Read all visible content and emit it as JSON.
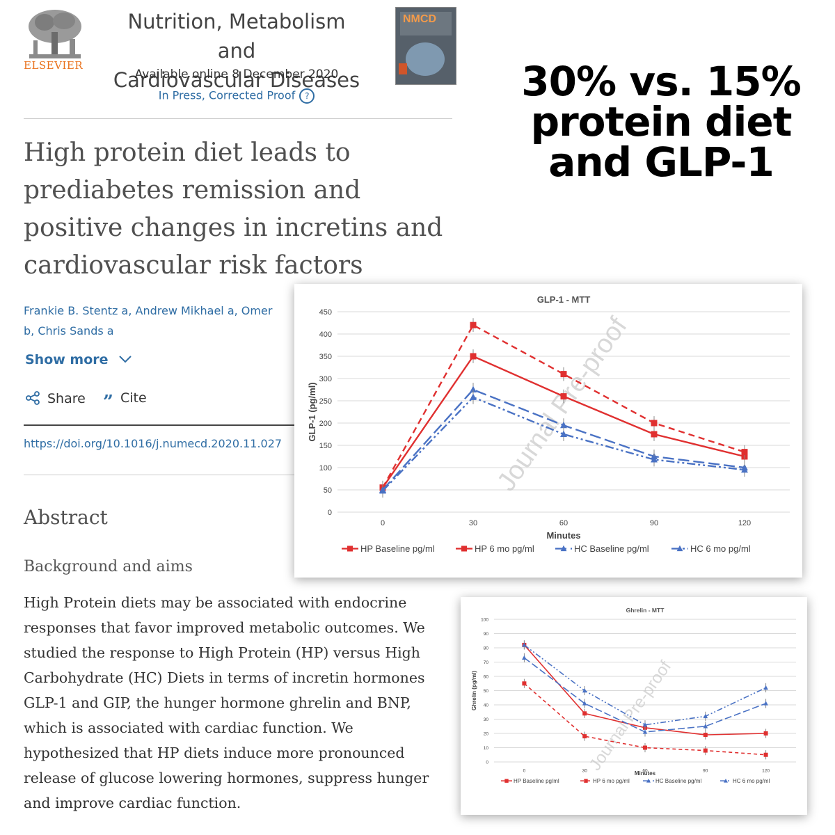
{
  "journal": {
    "publisher": "ELSEVIER",
    "name_line1": "Nutrition, Metabolism and",
    "name_line2": "Cardiovascular Diseases",
    "available": "Available online 8 December 2020",
    "status": "In Press, Corrected Proof",
    "cover_label": "NMCD"
  },
  "article": {
    "title_lines": [
      "High protein diet leads to",
      "prediabetes remission and",
      "positive changes in incretins and",
      "cardiovascular risk factors"
    ],
    "authors_line1": "Frankie B. Stentz a, Andrew Mikhael a, Omer",
    "authors_line2": "b, Chris Sands a",
    "show_more": "Show more",
    "share": "Share",
    "cite": "Cite",
    "doi": "https://doi.org/10.1016/j.numecd.2020.11.027",
    "abstract_heading": "Abstract",
    "section_heading": "Background and aims",
    "abstract_lines": [
      "High Protein diets may be associated with endocrine",
      "responses that favor improved metabolic outcomes. We",
      "studied the response to High Protein (HP) versus High",
      "Carbohydrate (HC) Diets in terms of incretin hormones",
      "GLP-1 and GIP, the hunger hormone ghrelin and BNP,",
      "which is associated with cardiac function. We",
      "hypothesized that HP diets induce more pronounced",
      "release of glucose lowering hormones, suppress hunger",
      "and improve cardiac function."
    ]
  },
  "headline": {
    "line1": "30% vs. 15%",
    "line2": "protein diet",
    "line3": "and GLP-1"
  },
  "colors": {
    "hp": "#e03030",
    "hc": "#4a72c4",
    "link": "#2f6da4",
    "elsevier": "#e9711c"
  },
  "chart_data": [
    {
      "type": "line",
      "title": "GLP-1 - MTT",
      "xlabel": "Minutes",
      "ylabel": "GLP-1 (pg/ml)",
      "x": [
        0,
        30,
        60,
        90,
        120
      ],
      "ylim": [
        0,
        450
      ],
      "yticks": [
        0,
        50,
        100,
        150,
        200,
        250,
        300,
        350,
        400,
        450
      ],
      "grid": true,
      "legend": "bottom",
      "watermark": "Journal Pre-proof",
      "series": [
        {
          "name": "HP Baseline pg/ml",
          "values": [
            55,
            350,
            260,
            175,
            125
          ],
          "color": "#e03030",
          "dash": "",
          "marker": "square"
        },
        {
          "name": "HP 6 mo pg/ml",
          "values": [
            55,
            420,
            310,
            200,
            135
          ],
          "color": "#e03030",
          "dash": "9,6",
          "marker": "square"
        },
        {
          "name": "HC Baseline pg/ml",
          "values": [
            50,
            275,
            195,
            125,
            100
          ],
          "color": "#4a72c4",
          "dash": "16,6",
          "marker": "triangle"
        },
        {
          "name": "HC 6 mo pg/ml",
          "values": [
            48,
            258,
            175,
            118,
            95
          ],
          "color": "#4a72c4",
          "dash": "12,4,3,4,3,4",
          "marker": "triangle"
        }
      ]
    },
    {
      "type": "line",
      "title": "Ghrelin - MTT",
      "xlabel": "Minutes",
      "ylabel": "Ghrelin (pg/ml)",
      "x": [
        0,
        30,
        60,
        90,
        120
      ],
      "ylim": [
        0,
        100
      ],
      "yticks": [
        0,
        10,
        20,
        30,
        40,
        50,
        60,
        70,
        80,
        90,
        100
      ],
      "grid": true,
      "legend": "bottom",
      "watermark": "Journal Pre-proof",
      "series": [
        {
          "name": "HP Baseline pg/ml",
          "values": [
            82,
            34,
            24,
            19,
            20
          ],
          "color": "#e03030",
          "dash": "",
          "marker": "square"
        },
        {
          "name": "HP 6 mo pg/ml",
          "values": [
            55,
            18,
            10,
            8,
            5
          ],
          "color": "#e03030",
          "dash": "5,4",
          "marker": "square"
        },
        {
          "name": "HC Baseline pg/ml",
          "values": [
            73,
            41,
            21,
            25,
            41
          ],
          "color": "#4a72c4",
          "dash": "10,4",
          "marker": "triangle"
        },
        {
          "name": "HC 6 mo pg/ml",
          "values": [
            82,
            50,
            26,
            32,
            52
          ],
          "color": "#4a72c4",
          "dash": "8,3,2,3,2,3",
          "marker": "triangle"
        }
      ]
    }
  ]
}
